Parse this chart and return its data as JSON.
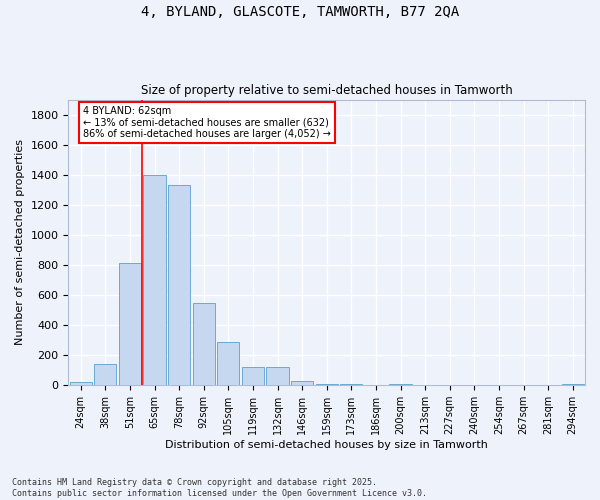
{
  "title": "4, BYLAND, GLASCOTE, TAMWORTH, B77 2QA",
  "subtitle": "Size of property relative to semi-detached houses in Tamworth",
  "xlabel": "Distribution of semi-detached houses by size in Tamworth",
  "ylabel": "Number of semi-detached properties",
  "categories": [
    "24sqm",
    "38sqm",
    "51sqm",
    "65sqm",
    "78sqm",
    "92sqm",
    "105sqm",
    "119sqm",
    "132sqm",
    "146sqm",
    "159sqm",
    "173sqm",
    "186sqm",
    "200sqm",
    "213sqm",
    "227sqm",
    "240sqm",
    "254sqm",
    "267sqm",
    "281sqm",
    "294sqm"
  ],
  "values": [
    20,
    140,
    810,
    1400,
    1330,
    550,
    290,
    120,
    120,
    30,
    10,
    10,
    0,
    10,
    0,
    0,
    0,
    0,
    0,
    0,
    10
  ],
  "bar_color": "#c5d8f0",
  "bar_edge_color": "#6aaad4",
  "property_label": "4 BYLAND: 62sqm",
  "pct_smaller": 13,
  "pct_larger": 86,
  "count_smaller": 632,
  "count_larger": 4052,
  "vline_x_index": 2.5,
  "ylim": [
    0,
    1900
  ],
  "yticks": [
    0,
    200,
    400,
    600,
    800,
    1000,
    1200,
    1400,
    1600,
    1800
  ],
  "background_color": "#eef2fa",
  "grid_color": "#ffffff",
  "footer": "Contains HM Land Registry data © Crown copyright and database right 2025.\nContains public sector information licensed under the Open Government Licence v3.0."
}
